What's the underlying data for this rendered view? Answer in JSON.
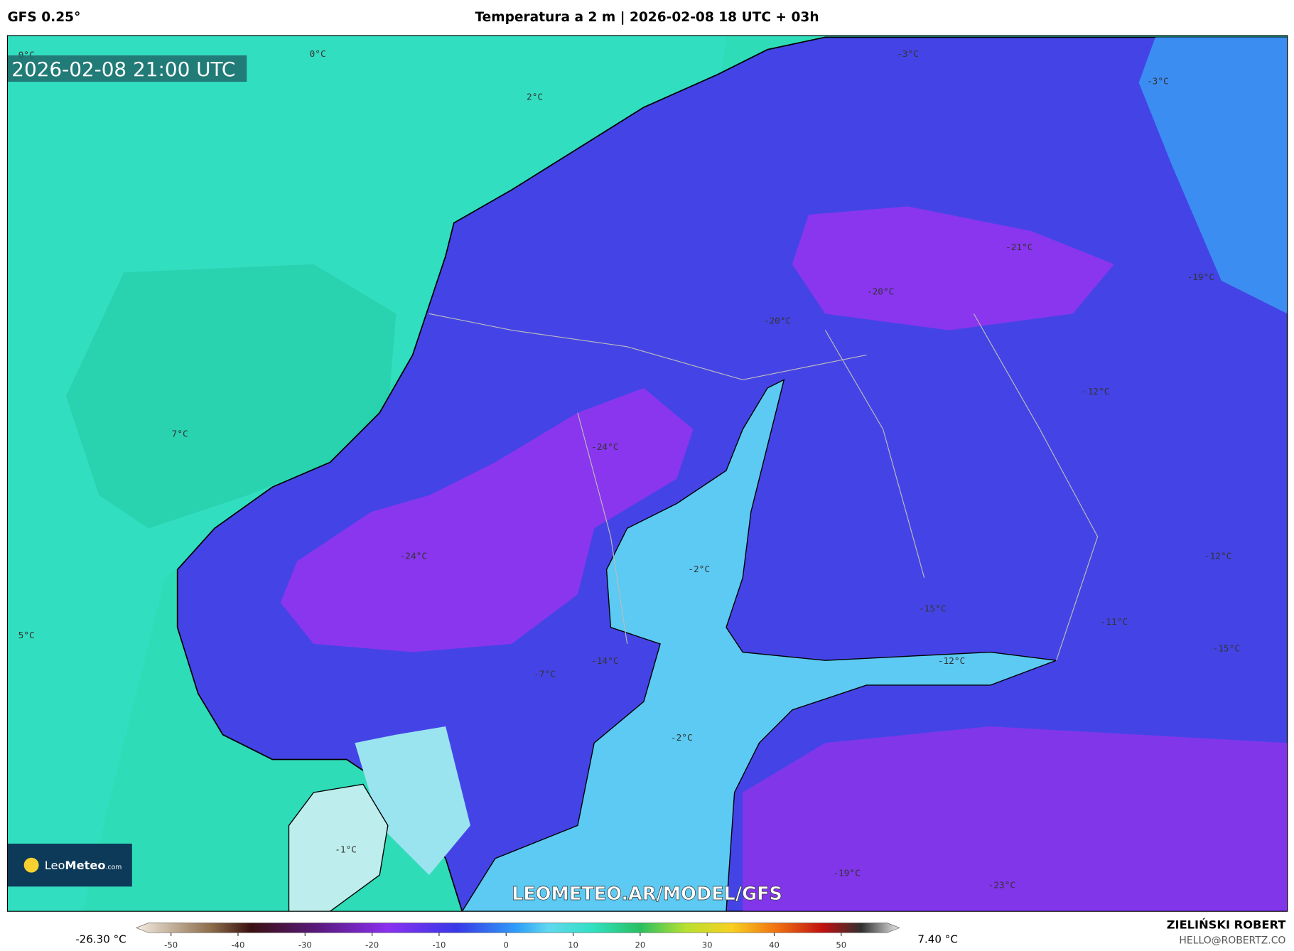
{
  "header": {
    "model": "GFS 0.25°",
    "title": "Temperatura a 2 m | 2026-02-08 18 UTC + 03h"
  },
  "timestamp": "2026-02-08 21:00 UTC",
  "map_labels": [
    "0°C",
    "0°C",
    "2°C",
    "-3°C",
    "-3°C",
    "-21°C",
    "-19°C",
    "-20°C",
    "-20°C",
    "-12°C",
    "7°C",
    "-24°C",
    "-2°C",
    "-24°C",
    "-12°C",
    "-15°C",
    "-11°C",
    "5°C",
    "-15°C",
    "-12°C",
    "-14°C",
    "-7°C",
    "-2°C",
    "-1°C",
    "-19°C",
    "-23°C"
  ],
  "logo": {
    "brand": "Leo",
    "brand_bold": "Meteo",
    "domain": ".com"
  },
  "watermark": "LEOMETEO.AR/MODEL/GFS",
  "colorbar": {
    "min_label": "-26.30 °C",
    "max_label": "7.40 °C",
    "lim": [
      -55.2,
      58.7
    ],
    "ticks": [
      -50,
      -40,
      -30,
      -20,
      -10,
      0,
      10,
      20,
      30,
      40,
      50
    ]
  },
  "footer": {
    "author": "ZIELIŃSKI ROBERT",
    "email": "HELLO@ROBERTZ.CO"
  }
}
